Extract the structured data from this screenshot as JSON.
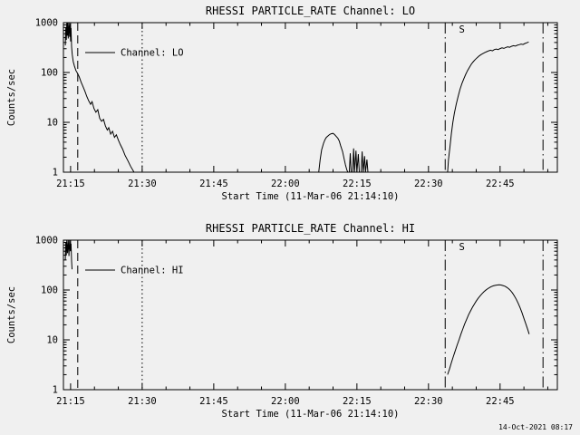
{
  "page": {
    "background": "#f0f0f0",
    "foreground": "#000000",
    "timestamp": "14-Oct-2021 08:17"
  },
  "chart_data": [
    {
      "type": "line",
      "title": "RHESSI PARTICLE_RATE Channel: LO",
      "xlabel": "Start Time (11-Mar-06 21:14:10)",
      "ylabel": "Counts/sec",
      "legend": "Channel: LO",
      "legend_position": "upper-left",
      "grid": false,
      "yscale": "log",
      "ylim": [
        1,
        1000
      ],
      "x_unit": "minutes after 21:00",
      "x_range": [
        13.5,
        117
      ],
      "x_minor_step": 5,
      "xticks": [
        {
          "v": 15,
          "label": "21:15"
        },
        {
          "v": 30,
          "label": "21:30"
        },
        {
          "v": 45,
          "label": "21:45"
        },
        {
          "v": 60,
          "label": "22:00"
        },
        {
          "v": 75,
          "label": "22:15"
        },
        {
          "v": 90,
          "label": "22:30"
        },
        {
          "v": 105,
          "label": "22:45"
        }
      ],
      "yticks": [
        {
          "v": 1,
          "label": "1"
        },
        {
          "v": 10,
          "label": "10"
        },
        {
          "v": 100,
          "label": "100"
        },
        {
          "v": 1000,
          "label": "1000"
        }
      ],
      "vlines": [
        {
          "x": 16.5,
          "style": "dashed"
        },
        {
          "x": 30,
          "style": "dotted"
        },
        {
          "x": 93.5,
          "style": "dashdot"
        },
        {
          "x": 114,
          "style": "dashdot"
        }
      ],
      "flags": [
        {
          "x": 97,
          "label": "S"
        }
      ],
      "series": [
        {
          "name": "Channel: LO",
          "color": "#000000",
          "points": [
            [
              13.9,
              350
            ],
            [
              14.0,
              800
            ],
            [
              14.1,
              450
            ],
            [
              14.2,
              1000
            ],
            [
              14.3,
              550
            ],
            [
              14.4,
              1000
            ],
            [
              14.5,
              480
            ],
            [
              14.65,
              1000
            ],
            [
              14.8,
              520
            ],
            [
              14.9,
              950
            ],
            [
              15.0,
              420
            ],
            [
              15.1,
              780
            ],
            [
              15.2,
              330
            ],
            [
              15.35,
              230
            ],
            [
              15.55,
              165
            ],
            [
              15.8,
              135
            ],
            [
              16.1,
              110
            ],
            [
              16.4,
              98
            ],
            [
              16.8,
              82
            ],
            [
              17.2,
              64
            ],
            [
              17.6,
              52
            ],
            [
              18.0,
              42
            ],
            [
              18.4,
              33
            ],
            [
              18.8,
              27
            ],
            [
              19.2,
              23
            ],
            [
              19.5,
              26
            ],
            [
              19.9,
              19
            ],
            [
              20.3,
              16
            ],
            [
              20.7,
              18
            ],
            [
              21.1,
              12
            ],
            [
              21.5,
              10.5
            ],
            [
              21.9,
              11.5
            ],
            [
              22.3,
              8.5
            ],
            [
              22.7,
              7
            ],
            [
              23.0,
              7.8
            ],
            [
              23.4,
              5.8
            ],
            [
              23.8,
              6.6
            ],
            [
              24.2,
              5.0
            ],
            [
              24.6,
              5.6
            ],
            [
              25.0,
              4.4
            ],
            [
              25.4,
              3.6
            ],
            [
              25.9,
              2.9
            ],
            [
              26.4,
              2.2
            ],
            [
              27.0,
              1.7
            ],
            [
              27.6,
              1.3
            ],
            [
              28.3,
              1.0
            ],
            null,
            [
              67.0,
              1.0
            ],
            [
              67.3,
              1.8
            ],
            [
              67.6,
              2.8
            ],
            [
              68.0,
              3.8
            ],
            [
              68.3,
              4.5
            ],
            [
              68.6,
              5.0
            ],
            [
              69.0,
              5.4
            ],
            [
              69.3,
              5.7
            ],
            [
              69.6,
              5.9
            ],
            [
              70.0,
              6.0
            ],
            [
              70.3,
              5.7
            ],
            [
              70.6,
              5.3
            ],
            [
              71.0,
              4.8
            ],
            [
              71.3,
              4.2
            ],
            [
              71.6,
              3.4
            ],
            [
              72.0,
              2.6
            ],
            [
              72.3,
              1.9
            ],
            [
              72.6,
              1.4
            ],
            [
              72.9,
              1.1
            ],
            [
              73.1,
              1.0
            ],
            [
              73.4,
              1.0
            ],
            [
              73.6,
              2.4
            ],
            [
              73.8,
              1.0
            ],
            [
              74.1,
              1.0
            ],
            [
              74.3,
              3.0
            ],
            [
              74.5,
              1.0
            ],
            [
              74.8,
              2.7
            ],
            [
              75.0,
              1.0
            ],
            [
              75.3,
              2.3
            ],
            [
              75.5,
              1.0
            ],
            [
              75.9,
              1.0
            ],
            [
              76.1,
              2.6
            ],
            [
              76.3,
              1.0
            ],
            [
              76.6,
              2.1
            ],
            [
              76.8,
              1.0
            ],
            [
              77.1,
              1.8
            ],
            [
              77.3,
              1.0
            ],
            null,
            [
              94.0,
              1.0
            ],
            [
              94.2,
              1.8
            ],
            [
              94.5,
              3.2
            ],
            [
              94.8,
              6.0
            ],
            [
              95.1,
              10
            ],
            [
              95.4,
              15
            ],
            [
              95.8,
              23
            ],
            [
              96.2,
              33
            ],
            [
              96.6,
              46
            ],
            [
              97.0,
              60
            ],
            [
              97.4,
              75
            ],
            [
              97.8,
              92
            ],
            [
              98.2,
              110
            ],
            [
              98.6,
              128
            ],
            [
              99.0,
              148
            ],
            [
              99.4,
              165
            ],
            [
              99.8,
              182
            ],
            [
              100.2,
              198
            ],
            [
              100.6,
              214
            ],
            [
              101.0,
              228
            ],
            [
              101.4,
              240
            ],
            [
              101.8,
              252
            ],
            [
              102.2,
              262
            ],
            [
              102.6,
              272
            ],
            [
              103.0,
              280
            ],
            [
              103.4,
              272
            ],
            [
              103.8,
              288
            ],
            [
              104.2,
              296
            ],
            [
              104.6,
              288
            ],
            [
              105.0,
              302
            ],
            [
              105.4,
              312
            ],
            [
              105.8,
              304
            ],
            [
              106.2,
              318
            ],
            [
              106.6,
              328
            ],
            [
              107.0,
              320
            ],
            [
              107.4,
              335
            ],
            [
              107.8,
              345
            ],
            [
              108.2,
              338
            ],
            [
              108.6,
              352
            ],
            [
              109.0,
              362
            ],
            [
              109.4,
              372
            ],
            [
              109.8,
              364
            ],
            [
              110.2,
              382
            ],
            [
              110.6,
              395
            ],
            [
              111.0,
              410
            ]
          ]
        }
      ]
    },
    {
      "type": "line",
      "title": "RHESSI PARTICLE_RATE Channel: HI",
      "xlabel": "Start Time (11-Mar-06 21:14:10)",
      "ylabel": "Counts/sec",
      "legend": "Channel: HI",
      "legend_position": "upper-left",
      "grid": false,
      "yscale": "log",
      "ylim": [
        1,
        1000
      ],
      "x_unit": "minutes after 21:00",
      "x_range": [
        13.5,
        117
      ],
      "x_minor_step": 5,
      "xticks": [
        {
          "v": 15,
          "label": "21:15"
        },
        {
          "v": 30,
          "label": "21:30"
        },
        {
          "v": 45,
          "label": "21:45"
        },
        {
          "v": 60,
          "label": "22:00"
        },
        {
          "v": 75,
          "label": "22:15"
        },
        {
          "v": 90,
          "label": "22:30"
        },
        {
          "v": 105,
          "label": "22:45"
        }
      ],
      "yticks": [
        {
          "v": 1,
          "label": "1"
        },
        {
          "v": 10,
          "label": "10"
        },
        {
          "v": 100,
          "label": "100"
        },
        {
          "v": 1000,
          "label": "1000"
        }
      ],
      "vlines": [
        {
          "x": 16.5,
          "style": "dashed"
        },
        {
          "x": 30,
          "style": "dotted"
        },
        {
          "x": 93.5,
          "style": "dashdot"
        },
        {
          "x": 114,
          "style": "dashdot"
        }
      ],
      "flags": [
        {
          "x": 97,
          "label": "S"
        }
      ],
      "series": [
        {
          "name": "Channel: HI",
          "color": "#000000",
          "points": [
            [
              13.9,
              400
            ],
            [
              14.0,
              900
            ],
            [
              14.1,
              500
            ],
            [
              14.2,
              1000
            ],
            [
              14.35,
              550
            ],
            [
              14.5,
              1000
            ],
            [
              14.65,
              480
            ],
            [
              14.8,
              1000
            ],
            [
              14.95,
              600
            ],
            [
              15.1,
              850
            ],
            [
              15.2,
              380
            ],
            [
              15.3,
              260
            ],
            null,
            [
              94.0,
              2.0
            ],
            [
              94.4,
              2.6
            ],
            [
              94.8,
              3.5
            ],
            [
              95.2,
              4.6
            ],
            [
              95.6,
              6.0
            ],
            [
              96.0,
              7.8
            ],
            [
              96.4,
              10
            ],
            [
              96.8,
              13
            ],
            [
              97.2,
              16.5
            ],
            [
              97.6,
              21
            ],
            [
              98.0,
              26
            ],
            [
              98.4,
              32
            ],
            [
              98.8,
              38
            ],
            [
              99.2,
              45
            ],
            [
              99.6,
              52
            ],
            [
              100.0,
              60
            ],
            [
              100.4,
              68
            ],
            [
              100.8,
              76
            ],
            [
              101.2,
              84
            ],
            [
              101.6,
              92
            ],
            [
              102.0,
              99
            ],
            [
              102.4,
              106
            ],
            [
              102.8,
              112
            ],
            [
              103.2,
              117
            ],
            [
              103.6,
              121
            ],
            [
              104.0,
              124
            ],
            [
              104.4,
              126
            ],
            [
              104.8,
              127
            ],
            [
              105.2,
              126
            ],
            [
              105.6,
              123
            ],
            [
              106.0,
              119
            ],
            [
              106.4,
              113
            ],
            [
              106.8,
              106
            ],
            [
              107.2,
              97
            ],
            [
              107.6,
              87
            ],
            [
              108.0,
              76
            ],
            [
              108.4,
              65
            ],
            [
              108.8,
              54
            ],
            [
              109.2,
              44
            ],
            [
              109.6,
              35
            ],
            [
              110.0,
              27
            ],
            [
              110.4,
              21
            ],
            [
              110.8,
              16
            ],
            [
              111.1,
              13
            ]
          ]
        }
      ]
    }
  ]
}
